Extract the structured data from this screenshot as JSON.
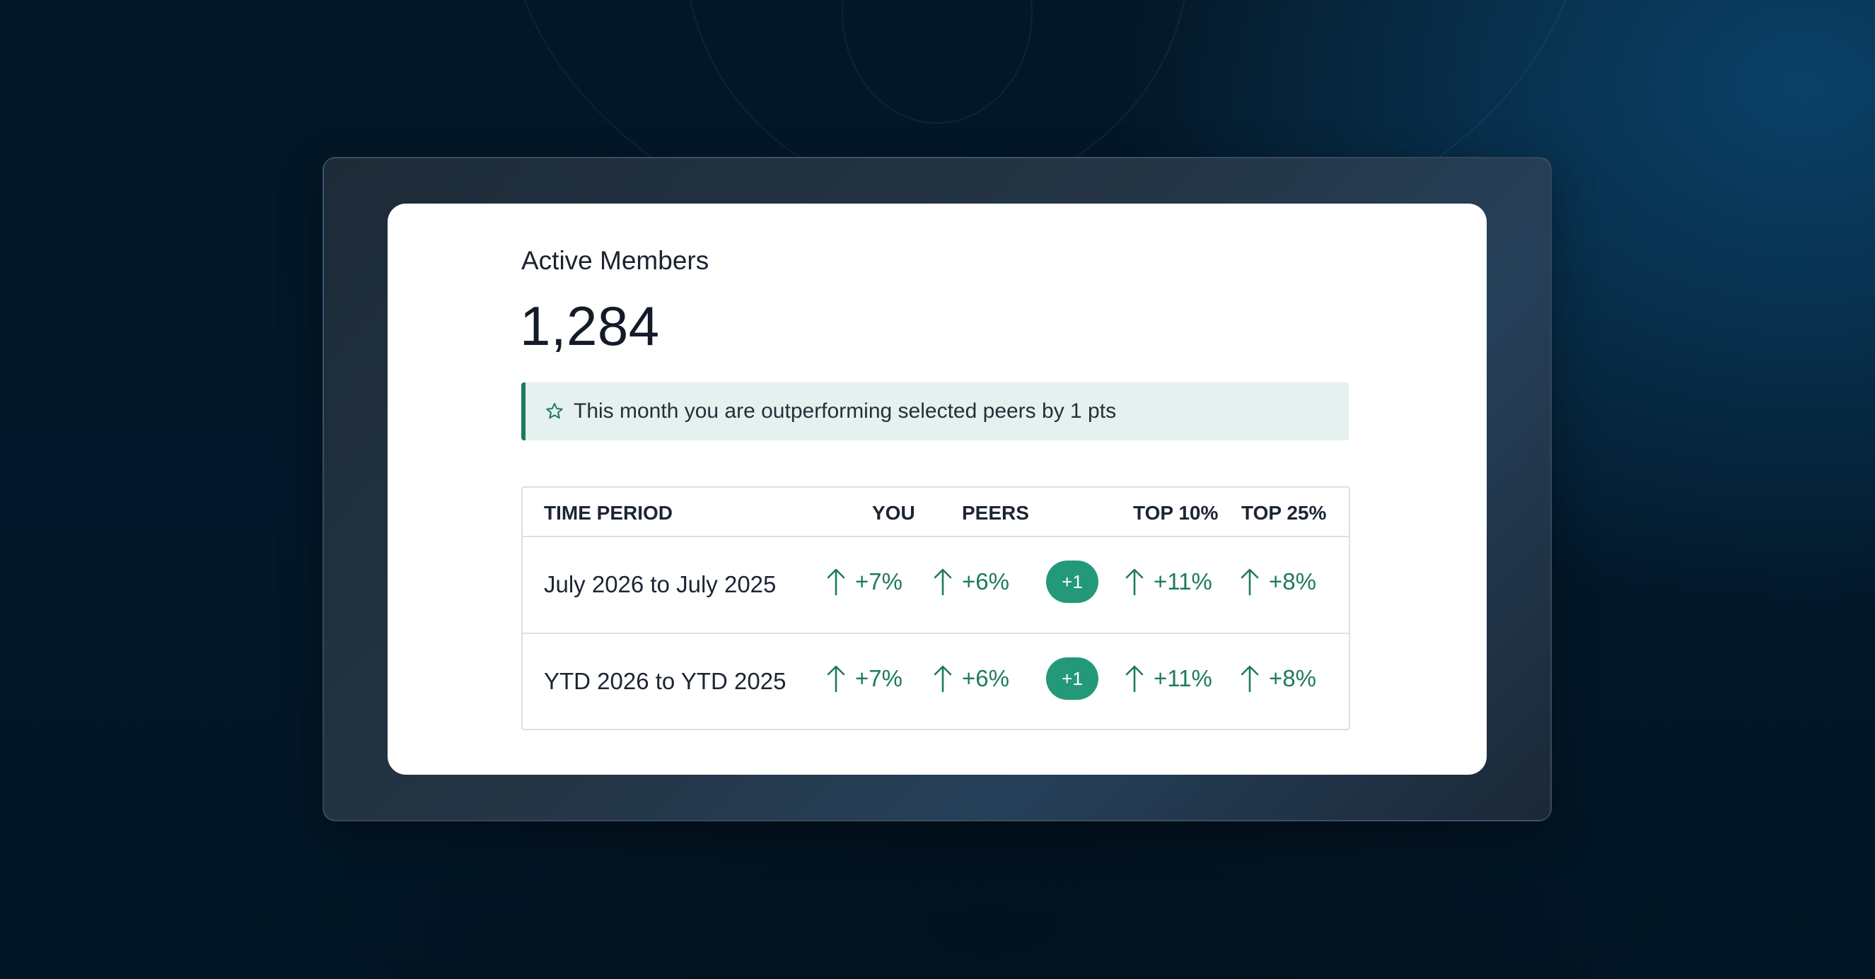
{
  "card": {
    "title": "Active Members",
    "value": "1,284",
    "banner": {
      "icon": "star-icon",
      "text": "This month you are outperforming selected peers by 1 pts"
    }
  },
  "table": {
    "headers": {
      "period": "TIME PERIOD",
      "you": "YOU",
      "peers": "PEERS",
      "top10": "TOP 10%",
      "top25": "TOP 25%"
    },
    "rows": [
      {
        "period": "July 2026 to July 2025",
        "you": "+7%",
        "peers": "+6%",
        "diff": "+1",
        "top10": "+11%",
        "top25": "+8%"
      },
      {
        "period": "YTD 2026 to YTD 2025",
        "you": "+7%",
        "peers": "+6%",
        "diff": "+1",
        "top10": "+11%",
        "top25": "+8%"
      }
    ]
  },
  "colors": {
    "accent_green": "#1e7a5f",
    "pill_green": "#23997a",
    "banner_bg": "#e4f1ee",
    "background": "#041726"
  }
}
